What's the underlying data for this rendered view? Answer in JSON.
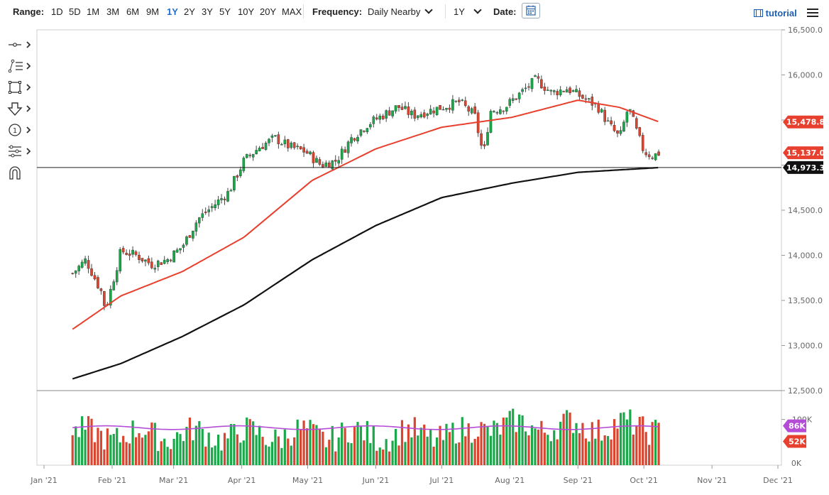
{
  "toolbar": {
    "range_label": "Range:",
    "ranges": [
      "1D",
      "5D",
      "1M",
      "3M",
      "6M",
      "9M",
      "1Y",
      "2Y",
      "3Y",
      "5Y",
      "10Y",
      "20Y",
      "MAX"
    ],
    "active_range": "1Y",
    "frequency_label": "Frequency:",
    "frequency_value": "Daily Nearby",
    "period_value": "1Y",
    "date_label": "Date:",
    "tutorial_label": "tutorial"
  },
  "tools": [
    "crosshair-tool-icon",
    "line-tool-icon",
    "rectangle-tool-icon",
    "arrow-tool-icon",
    "counter-tool-icon",
    "measure-tool-icon",
    "magnet-tool-icon"
  ],
  "colors": {
    "up": "#1aa84a",
    "down": "#d9452f",
    "sma50": "#e8402e",
    "sma200": "#111111",
    "vol_avg": "#b44cd6",
    "vol_highlight": "#3b5bd1",
    "label_red": "#e8402e",
    "label_black": "#111111",
    "label_purple": "#b44cd6"
  },
  "chart_data": {
    "type": "candlestick",
    "y_axis": {
      "min": 12500,
      "max": 16500,
      "ticks": [
        "12,500.0",
        "13,000.0",
        "13,500.0",
        "14,000.0",
        "14,500.0",
        "15,000.0",
        "15,500.0",
        "16,000.0",
        "16,500.0"
      ]
    },
    "x_axis_ticks": [
      "Jan '21",
      "Feb '21",
      "Mar '21",
      "Apr '21",
      "May '21",
      "Jun '21",
      "Jul '21",
      "Aug '21",
      "Sep '21",
      "Oct '21",
      "Nov '21",
      "Dec '21"
    ],
    "price_labels": {
      "sma50": "15,478.8",
      "last": "15,137.0",
      "sma200": "14,973.3"
    },
    "horizontal_line": 14973.3,
    "series_close_points": [
      [
        "2021-01-14",
        13800
      ],
      [
        "2021-01-20",
        13950
      ],
      [
        "2021-01-27",
        13600
      ],
      [
        "2021-01-29",
        13400
      ],
      [
        "2021-02-05",
        14050
      ],
      [
        "2021-02-12",
        14000
      ],
      [
        "2021-02-19",
        13900
      ],
      [
        "2021-02-26",
        13950
      ],
      [
        "2021-03-05",
        14100
      ],
      [
        "2021-03-12",
        14400
      ],
      [
        "2021-03-19",
        14550
      ],
      [
        "2021-03-26",
        14700
      ],
      [
        "2021-04-02",
        15050
      ],
      [
        "2021-04-09",
        15200
      ],
      [
        "2021-04-16",
        15300
      ],
      [
        "2021-04-23",
        15200
      ],
      [
        "2021-04-30",
        15150
      ],
      [
        "2021-05-07",
        15000
      ],
      [
        "2021-05-14",
        15050
      ],
      [
        "2021-05-21",
        15300
      ],
      [
        "2021-05-28",
        15450
      ],
      [
        "2021-06-04",
        15550
      ],
      [
        "2021-06-11",
        15650
      ],
      [
        "2021-06-18",
        15550
      ],
      [
        "2021-06-25",
        15600
      ],
      [
        "2021-07-02",
        15650
      ],
      [
        "2021-07-09",
        15700
      ],
      [
        "2021-07-16",
        15550
      ],
      [
        "2021-07-20",
        15100
      ],
      [
        "2021-07-23",
        15600
      ],
      [
        "2021-07-30",
        15650
      ],
      [
        "2021-08-06",
        15800
      ],
      [
        "2021-08-13",
        15950
      ],
      [
        "2021-08-20",
        15800
      ],
      [
        "2021-08-27",
        15850
      ],
      [
        "2021-09-03",
        15750
      ],
      [
        "2021-09-10",
        15650
      ],
      [
        "2021-09-15",
        15450
      ],
      [
        "2021-09-20",
        15300
      ],
      [
        "2021-09-24",
        15650
      ],
      [
        "2021-09-28",
        15350
      ],
      [
        "2021-10-01",
        15150
      ],
      [
        "2021-10-05",
        15100
      ],
      [
        "2021-10-08",
        15137
      ]
    ],
    "sma50_points": [
      [
        "2021-01-14",
        13180
      ],
      [
        "2021-02-05",
        13550
      ],
      [
        "2021-03-05",
        13820
      ],
      [
        "2021-04-02",
        14200
      ],
      [
        "2021-05-03",
        14830
      ],
      [
        "2021-06-01",
        15180
      ],
      [
        "2021-07-01",
        15420
      ],
      [
        "2021-08-02",
        15530
      ],
      [
        "2021-09-01",
        15720
      ],
      [
        "2021-09-20",
        15640
      ],
      [
        "2021-10-08",
        15479
      ]
    ],
    "sma200_points": [
      [
        "2021-01-14",
        12630
      ],
      [
        "2021-02-05",
        12800
      ],
      [
        "2021-03-05",
        13100
      ],
      [
        "2021-04-02",
        13450
      ],
      [
        "2021-05-03",
        13950
      ],
      [
        "2021-06-01",
        14330
      ],
      [
        "2021-07-01",
        14640
      ],
      [
        "2021-08-02",
        14800
      ],
      [
        "2021-09-01",
        14920
      ],
      [
        "2021-10-08",
        14973
      ]
    ],
    "volume": {
      "labels": {
        "avg": "86K",
        "last": "52K",
        "zero": "0K",
        "top_tick": "100K"
      },
      "max": 160000
    }
  }
}
